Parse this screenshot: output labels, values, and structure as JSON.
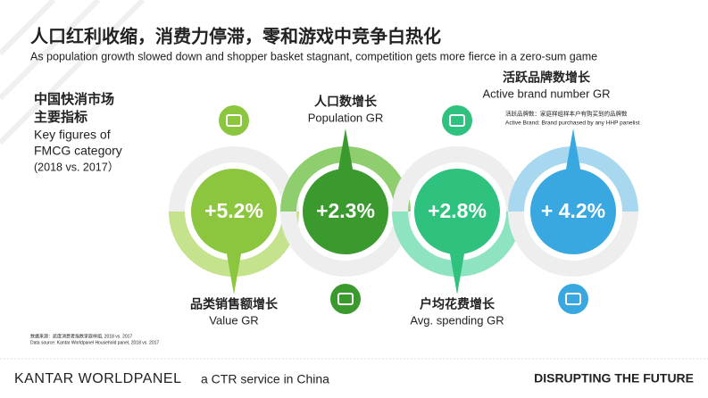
{
  "header": {
    "title": "人口红利收缩，消费力停滞，零和游戏中竞争白热化",
    "subtitle": "As population growth slowed down and shopper basket stagnant, competition gets more fierce in a zero-sum game"
  },
  "intro": {
    "title_line1": "中国快消市场",
    "title_line2": "主要指标",
    "en_line1": "Key figures of",
    "en_line2": "FMCG category",
    "en_line3": "(2018 vs. 2017）"
  },
  "metrics": [
    {
      "value": "+5.2%",
      "label": "品类销售额增长",
      "label_en": "Value GR"
    },
    {
      "value": "+2.3%",
      "label": "人口数增长",
      "label_en": "Population GR"
    },
    {
      "value": "+2.8%",
      "label": "户均花费增长",
      "label_en": "Avg. spending GR"
    },
    {
      "value": "+ 4.2%",
      "label": "活跃品牌数增长",
      "label_en": "Active brand number GR",
      "note": "活跃品牌数：家庭样组样本户有购买到的品牌数",
      "note_en": "Active Brand: Brand purchased by any HHP panelist"
    }
  ],
  "sources": {
    "cn": "数据来源：凯度消费者指数家庭样组, 2018 vs. 2017",
    "en": "Data source: Kantar Worldpanel Household panel, 2018 vs. 2017"
  },
  "footer": {
    "brand": "KANTAR WORLDPANEL",
    "tagline": "a CTR service in China",
    "slogan": "DISRUPTING THE FUTURE"
  }
}
